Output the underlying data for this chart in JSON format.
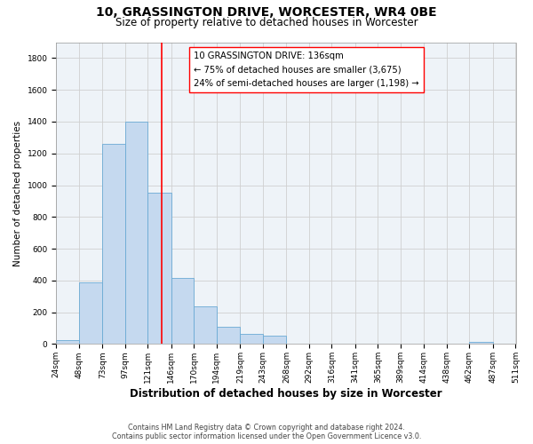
{
  "title": "10, GRASSINGTON DRIVE, WORCESTER, WR4 0BE",
  "subtitle": "Size of property relative to detached houses in Worcester",
  "xlabel": "Distribution of detached houses by size in Worcester",
  "ylabel": "Number of detached properties",
  "footer_line1": "Contains HM Land Registry data © Crown copyright and database right 2024.",
  "footer_line2": "Contains public sector information licensed under the Open Government Licence v3.0.",
  "bin_edges": [
    24,
    48,
    73,
    97,
    121,
    146,
    170,
    194,
    219,
    243,
    268,
    292,
    316,
    341,
    365,
    389,
    414,
    438,
    462,
    487,
    511
  ],
  "bin_labels": [
    "24sqm",
    "48sqm",
    "73sqm",
    "97sqm",
    "121sqm",
    "146sqm",
    "170sqm",
    "194sqm",
    "219sqm",
    "243sqm",
    "268sqm",
    "292sqm",
    "316sqm",
    "341sqm",
    "365sqm",
    "389sqm",
    "414sqm",
    "438sqm",
    "462sqm",
    "487sqm",
    "511sqm"
  ],
  "counts": [
    25,
    390,
    1260,
    1400,
    950,
    415,
    235,
    110,
    65,
    50,
    0,
    0,
    0,
    0,
    0,
    0,
    0,
    0,
    15,
    0
  ],
  "bar_color": "#c5d9ef",
  "bar_edge_color": "#6aaad4",
  "vline_x": 136,
  "vline_color": "red",
  "annotation_line1": "10 GRASSINGTON DRIVE: 136sqm",
  "annotation_line2": "← 75% of detached houses are smaller (3,675)",
  "annotation_line3": "24% of semi-detached houses are larger (1,198) →",
  "annotation_box_color": "white",
  "annotation_box_edge_color": "red",
  "ylim": [
    0,
    1900
  ],
  "yticks": [
    0,
    200,
    400,
    600,
    800,
    1000,
    1200,
    1400,
    1600,
    1800
  ],
  "title_fontsize": 10,
  "subtitle_fontsize": 8.5,
  "xlabel_fontsize": 8.5,
  "ylabel_fontsize": 7.5,
  "tick_fontsize": 6.5,
  "annotation_fontsize": 7.2,
  "footer_fontsize": 5.8
}
